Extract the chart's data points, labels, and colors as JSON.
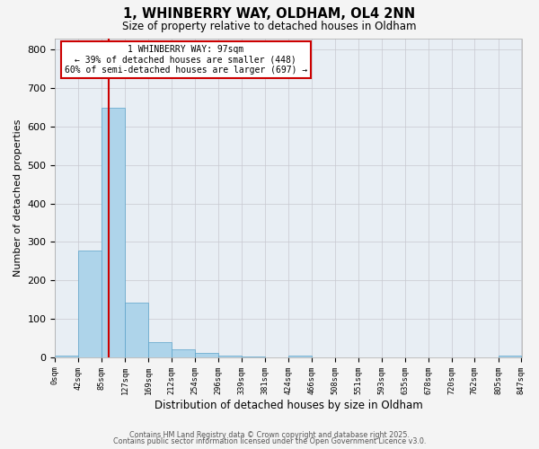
{
  "title": "1, WHINBERRY WAY, OLDHAM, OL4 2NN",
  "subtitle": "Size of property relative to detached houses in Oldham",
  "xlabel": "Distribution of detached houses by size in Oldham",
  "ylabel": "Number of detached properties",
  "bin_edges": [
    0,
    42,
    85,
    127,
    169,
    212,
    254,
    296,
    339,
    381,
    424,
    466,
    508,
    551,
    593,
    635,
    678,
    720,
    762,
    805,
    847
  ],
  "bar_heights": [
    5,
    278,
    648,
    143,
    38,
    20,
    10,
    5,
    2,
    0,
    5,
    0,
    0,
    0,
    0,
    0,
    0,
    0,
    0,
    3
  ],
  "bar_color": "#aed4ea",
  "bar_edgecolor": "#5ba3c9",
  "vline_x": 97,
  "vline_color": "#cc0000",
  "ylim": [
    0,
    830
  ],
  "yticks": [
    0,
    100,
    200,
    300,
    400,
    500,
    600,
    700,
    800
  ],
  "tick_labels": [
    "0sqm",
    "42sqm",
    "85sqm",
    "127sqm",
    "169sqm",
    "212sqm",
    "254sqm",
    "296sqm",
    "339sqm",
    "381sqm",
    "424sqm",
    "466sqm",
    "508sqm",
    "551sqm",
    "593sqm",
    "635sqm",
    "678sqm",
    "720sqm",
    "762sqm",
    "805sqm",
    "847sqm"
  ],
  "annotation_title": "1 WHINBERRY WAY: 97sqm",
  "annotation_line1": "← 39% of detached houses are smaller (448)",
  "annotation_line2": "60% of semi-detached houses are larger (697) →",
  "annotation_box_edgecolor": "#cc0000",
  "footer_line1": "Contains HM Land Registry data © Crown copyright and database right 2025.",
  "footer_line2": "Contains public sector information licensed under the Open Government Licence v3.0.",
  "bg_color": "#f4f4f4",
  "plot_bg_color": "#e8eef4"
}
